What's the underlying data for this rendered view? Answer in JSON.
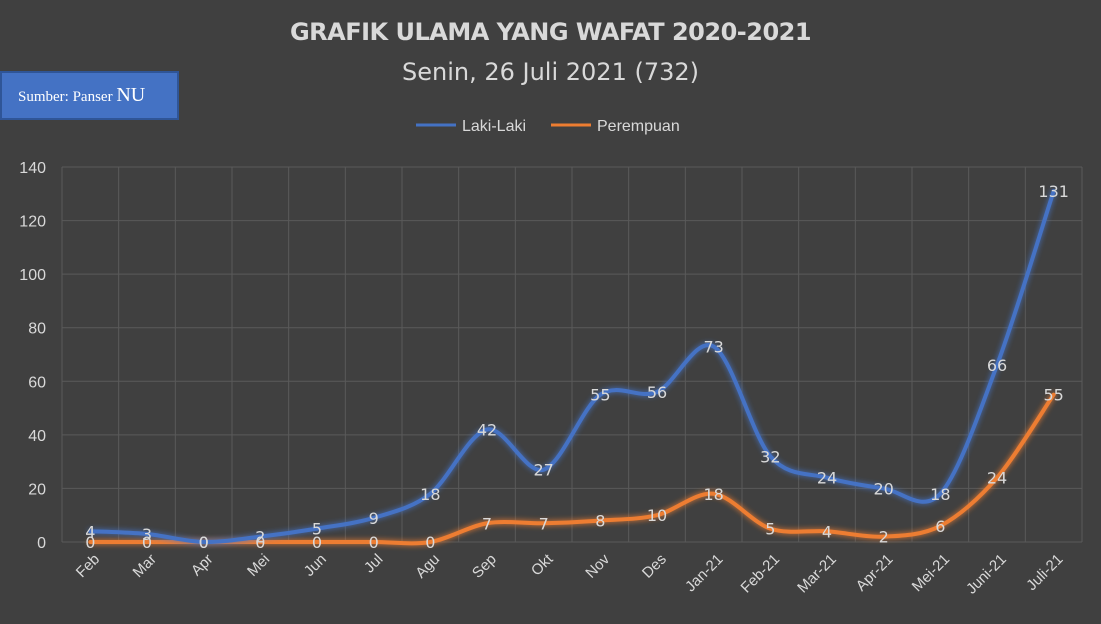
{
  "source_box": {
    "prefix": "Sumber: Panser",
    "suffix": "NU"
  },
  "chart_data": {
    "type": "line",
    "title": "GRAFIK ULAMA YANG WAFAT 2020-2021",
    "subtitle": "Senin, 26 Juli 2021 (732)",
    "categories": [
      "Feb",
      "Mar",
      "Apr",
      "Mei",
      "Jun",
      "Jul",
      "Agu",
      "Sep",
      "Okt",
      "Nov",
      "Des",
      "Jan-21",
      "Feb-21",
      "Mar-21",
      "Apr-21",
      "Mei-21",
      "Juni-21",
      "Juli-21"
    ],
    "series": [
      {
        "name": "Laki-Laki",
        "color": "#4472c4",
        "values": [
          4,
          3,
          0,
          2,
          5,
          9,
          18,
          42,
          27,
          55,
          56,
          73,
          32,
          24,
          20,
          18,
          66,
          131
        ]
      },
      {
        "name": "Perempuan",
        "color": "#ed7d31",
        "values": [
          0,
          0,
          0,
          0,
          0,
          0,
          0,
          7,
          7,
          8,
          10,
          18,
          5,
          4,
          2,
          6,
          24,
          55
        ]
      }
    ],
    "ylim": [
      0,
      140
    ],
    "yticks": [
      0,
      20,
      40,
      60,
      80,
      100,
      120,
      140
    ],
    "grid": true,
    "legend": "top-center",
    "xlabel": "",
    "ylabel": ""
  }
}
